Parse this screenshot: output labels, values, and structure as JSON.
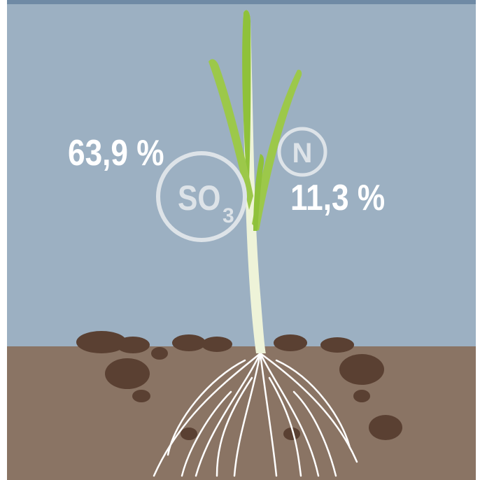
{
  "so3": {
    "share": "63,9 %",
    "symbol": "SO",
    "subscript": "3"
  },
  "n": {
    "symbol": "N",
    "share": "11,3 %"
  }
}
